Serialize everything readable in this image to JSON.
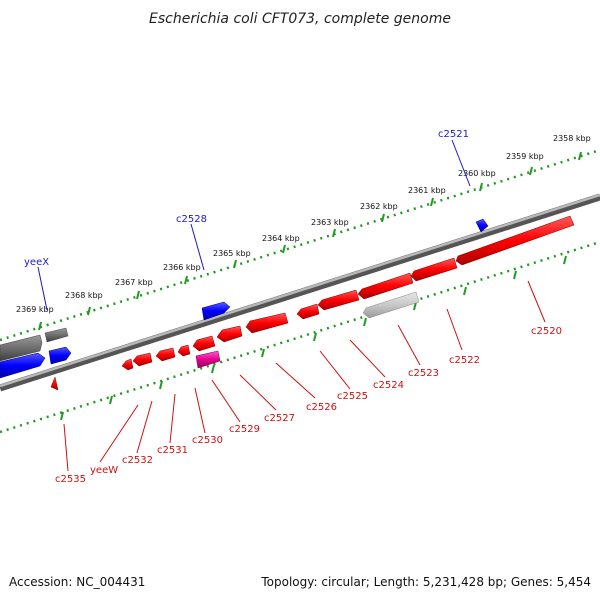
{
  "title": "Escherichia coli CFT073, complete genome",
  "footer": {
    "accession": "Accession: NC_004431",
    "summary": "Topology: circular; Length: 5,231,428 bp; Genes: 5,454"
  },
  "colors": {
    "forward_gene": "#1a1aff",
    "reverse_gene": "#ff1a1a",
    "rrna_gene": "#e61a9e",
    "pseudo_gene": "#bfbfbf",
    "other_gene": "#6e6e6e",
    "backbone": "#8c8c8c",
    "ruler": "#229922",
    "label_forward": "#1a1acc",
    "label_reverse": "#cc1111"
  },
  "ruler_labels": [
    "2358 kbp",
    "2359 kbp",
    "2360 kbp",
    "2361 kbp",
    "2362 kbp",
    "2363 kbp",
    "2364 kbp",
    "2365 kbp",
    "2366 kbp",
    "2367 kbp",
    "2368 kbp",
    "2369 kbp"
  ],
  "forward_labels": [
    "c2521",
    "c2528",
    "yeeX"
  ],
  "reverse_labels": [
    "c2520",
    "c2522",
    "c2523",
    "c2524",
    "c2525",
    "c2526",
    "c2527",
    "c2529",
    "c2530",
    "c2531",
    "c2532",
    "yeeW",
    "c2535"
  ]
}
